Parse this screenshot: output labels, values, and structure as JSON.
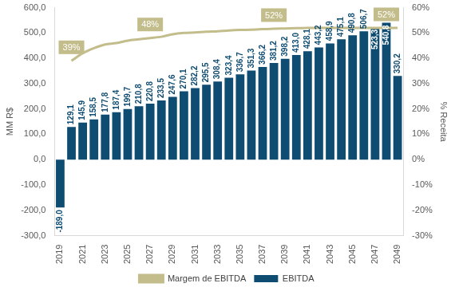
{
  "chart_data": {
    "type": "bar",
    "y_label": "MM R$",
    "y2_label": "% Receita",
    "categories": [
      "2019",
      null,
      "2021",
      null,
      "2023",
      null,
      "2025",
      null,
      "2027",
      null,
      "2029",
      null,
      "2031",
      null,
      "2033",
      null,
      "2035",
      null,
      "2037",
      null,
      "2039",
      null,
      "2041",
      null,
      "2043",
      null,
      "2045",
      null,
      "2047",
      null,
      "2049"
    ],
    "ylim": [
      -300,
      600
    ],
    "yticks": [
      {
        "value": -300,
        "label": "-300,0"
      },
      {
        "value": -200,
        "label": "-200,0"
      },
      {
        "value": -100,
        "label": "-100,0"
      },
      {
        "value": 0,
        "label": "0,0"
      },
      {
        "value": 100,
        "label": "100,0"
      },
      {
        "value": 200,
        "label": "200,0"
      },
      {
        "value": 300,
        "label": "300,0"
      },
      {
        "value": 400,
        "label": "400,0"
      },
      {
        "value": 500,
        "label": "500,0"
      },
      {
        "value": 600,
        "label": "600,0"
      }
    ],
    "y2lim": [
      -30,
      60
    ],
    "y2ticks": [
      {
        "value": -30,
        "label": "-30%"
      },
      {
        "value": -20,
        "label": "-20%"
      },
      {
        "value": -10,
        "label": "-10%"
      },
      {
        "value": 0,
        "label": "0%"
      },
      {
        "value": 10,
        "label": "10%"
      },
      {
        "value": 20,
        "label": "20%"
      },
      {
        "value": 30,
        "label": "30%"
      },
      {
        "value": 40,
        "label": "40%"
      },
      {
        "value": 50,
        "label": "50%"
      },
      {
        "value": 60,
        "label": "60%"
      }
    ],
    "grid": false,
    "legend": "bottom",
    "data_labels": true,
    "series": [
      {
        "name": "EBITDA",
        "type": "bar",
        "color": "#0f4c72",
        "values": [
          -189.0,
          129.1,
          145.9,
          158.5,
          177.8,
          187.4,
          199.7,
          210.8,
          220.8,
          233.5,
          247.6,
          270.1,
          282.2,
          295.5,
          308.4,
          323.4,
          336.7,
          351.3,
          366.2,
          381.2,
          398.2,
          413.0,
          428.1,
          443.2,
          458.9,
          475.1,
          490.8,
          506.7,
          523.3,
          540.8,
          330.2
        ],
        "value_labels": [
          "-189,0",
          "129,1",
          "145,9",
          "158,5",
          "177,8",
          "187,4",
          "199,7",
          "210,8",
          "220,8",
          "233,5",
          "247,6",
          "270,1",
          "282,2",
          "295,5",
          "308,4",
          "323,4",
          "336,7",
          "351,3",
          "366,2",
          "381,2",
          "398,2",
          "413,0",
          "428,1",
          "443,2",
          "458,9",
          "475,1",
          "490,8",
          "506,7",
          "523,3",
          "540,8",
          "330,2"
        ]
      },
      {
        "name": "Margem de EBITDA",
        "type": "line",
        "axis": "y2",
        "color": "#c3bc8b",
        "marker": "none",
        "values": [
          null,
          39,
          42,
          44,
          45.5,
          46,
          47,
          47.5,
          48,
          48.5,
          49.5,
          50,
          50.2,
          50.5,
          50.7,
          51,
          51.2,
          51.3,
          51.5,
          51.7,
          51.8,
          51.9,
          52,
          52,
          52,
          52,
          52,
          52,
          52,
          52,
          52
        ],
        "value_labels": [
          null,
          "39%",
          null,
          null,
          null,
          null,
          null,
          null,
          "48%",
          null,
          null,
          null,
          null,
          null,
          null,
          null,
          null,
          null,
          null,
          "52%",
          null,
          null,
          null,
          null,
          null,
          null,
          null,
          null,
          null,
          "52%",
          null
        ]
      }
    ]
  }
}
